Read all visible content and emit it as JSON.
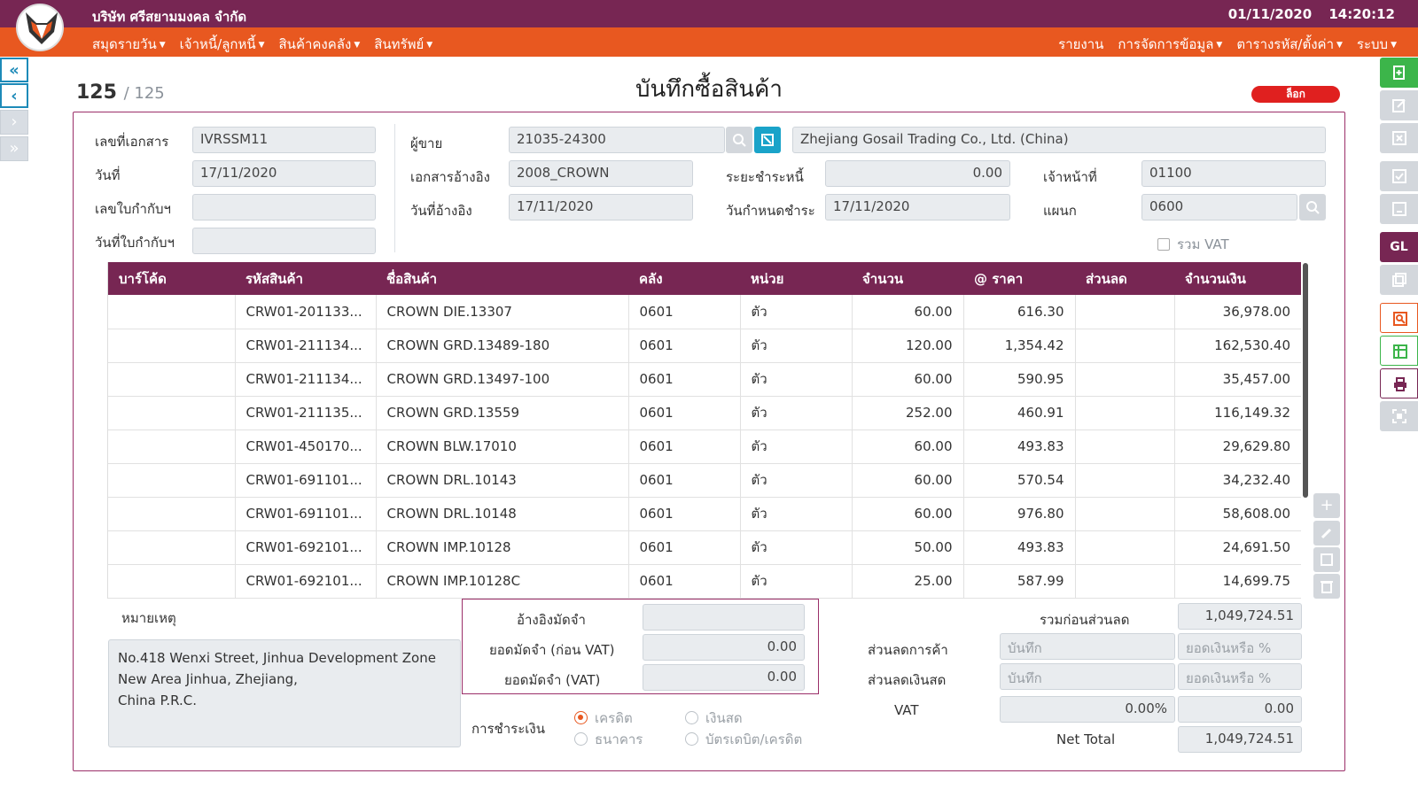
{
  "header": {
    "company": "บริษัท ศรีสยามมงคล จำกัด",
    "date": "01/11/2020",
    "time": "14:20:12"
  },
  "menu": {
    "left": [
      "สมุดรายวัน",
      "เจ้าหนี้/ลูกหนี้",
      "สินค้าคงคลัง",
      "สินทรัพย์"
    ],
    "right": [
      "รายงาน",
      "การจัดการข้อมูล",
      "ตารางรหัส/ตั้งค่า",
      "ระบบ"
    ]
  },
  "nav": {
    "first": "«",
    "prev": "‹",
    "next": "›",
    "last": "»"
  },
  "record": {
    "current": "125",
    "total": "/ 125"
  },
  "title": "บันทึกซื้อสินค้า",
  "status_badge": "ล็อก",
  "form": {
    "doc_no_label": "เลขที่เอกสาร",
    "doc_no": "IVRSSM11",
    "date_label": "วันที่",
    "date": "17/11/2020",
    "tax_inv_label": "เลขใบกำกับฯ",
    "tax_inv": "",
    "tax_inv_date_label": "วันที่ใบกำกับฯ",
    "tax_inv_date": "",
    "vendor_label": "ผู้ขาย",
    "vendor_code": "21035-24300",
    "vendor_name": "Zhejiang Gosail Trading Co., Ltd. (China)",
    "ref_doc_label": "เอกสารอ้างอิง",
    "ref_doc": "2008_CROWN",
    "ref_date_label": "วันที่อ้างอิง",
    "ref_date": "17/11/2020",
    "credit_term_label": "ระยะชำระหนี้",
    "credit_term": "0.00",
    "due_date_label": "วันกำหนดชำระ",
    "due_date": "17/11/2020",
    "officer_label": "เจ้าหน้าที่",
    "officer": "01100",
    "dept_label": "แผนก",
    "dept": "0600",
    "vat_incl_label": "รวม VAT"
  },
  "table": {
    "headers": [
      "บาร์โค้ด",
      "รหัสสินค้า",
      "ชื่อสินค้า",
      "คลัง",
      "หน่วย",
      "จำนวน",
      "@ ราคา",
      "ส่วนลด",
      "จำนวนเงิน"
    ],
    "rows": [
      [
        "",
        "CRW01-201133...",
        "CROWN DIE.13307",
        "0601",
        "ตัว",
        "60.00",
        "616.30",
        "",
        "36,978.00"
      ],
      [
        "",
        "CRW01-211134...",
        "CROWN GRD.13489-180",
        "0601",
        "ตัว",
        "120.00",
        "1,354.42",
        "",
        "162,530.40"
      ],
      [
        "",
        "CRW01-211134...",
        "CROWN GRD.13497-100",
        "0601",
        "ตัว",
        "60.00",
        "590.95",
        "",
        "35,457.00"
      ],
      [
        "",
        "CRW01-211135...",
        "CROWN GRD.13559",
        "0601",
        "ตัว",
        "252.00",
        "460.91",
        "",
        "116,149.32"
      ],
      [
        "",
        "CRW01-450170...",
        "CROWN BLW.17010",
        "0601",
        "ตัว",
        "60.00",
        "493.83",
        "",
        "29,629.80"
      ],
      [
        "",
        "CRW01-691101...",
        "CROWN DRL.10143",
        "0601",
        "ตัว",
        "60.00",
        "570.54",
        "",
        "34,232.40"
      ],
      [
        "",
        "CRW01-691101...",
        "CROWN DRL.10148",
        "0601",
        "ตัว",
        "60.00",
        "976.80",
        "",
        "58,608.00"
      ],
      [
        "",
        "CRW01-692101...",
        "CROWN IMP.10128",
        "0601",
        "ตัว",
        "50.00",
        "493.83",
        "",
        "24,691.50"
      ],
      [
        "",
        "CRW01-692101...",
        "CROWN IMP.10128C",
        "0601",
        "ตัว",
        "25.00",
        "587.99",
        "",
        "14,699.75"
      ]
    ]
  },
  "memo": {
    "label": "หมายเหตุ",
    "lines": [
      "No.418 Wenxi Street, Jinhua Development Zone",
      "New Area Jinhua, Zhejiang,",
      "China P.R.C."
    ]
  },
  "deposit": {
    "ref_label": "อ้างอิงมัดจำ",
    "ref": "",
    "pre_vat_label": "ยอดมัดจำ (ก่อน VAT)",
    "pre_vat": "0.00",
    "vat_label": "ยอดมัดจำ (VAT)",
    "vat": "0.00"
  },
  "payment": {
    "label": "การชำระเงิน",
    "options": [
      "เครดิต",
      "เงินสด",
      "ธนาคาร",
      "บัตรเดบิต/เครดิต"
    ],
    "selected": "เครดิต"
  },
  "totals": {
    "subtotal_label": "รวมก่อนส่วนลด",
    "subtotal": "1,049,724.51",
    "trade_disc_label": "ส่วนลดการค้า",
    "trade_disc_ph": "บันทึก",
    "trade_disc_amt_ph": "ยอดเงินหรือ %",
    "cash_disc_label": "ส่วนลดเงินสด",
    "cash_disc_ph": "บันทึก",
    "cash_disc_amt_ph": "ยอดเงินหรือ %",
    "vat_label": "VAT",
    "vat_rate": "0.00%",
    "vat_amt": "0.00",
    "net_label": "Net Total",
    "net": "1,049,724.51"
  },
  "sidebar_right": {
    "gl_label": "GL"
  }
}
